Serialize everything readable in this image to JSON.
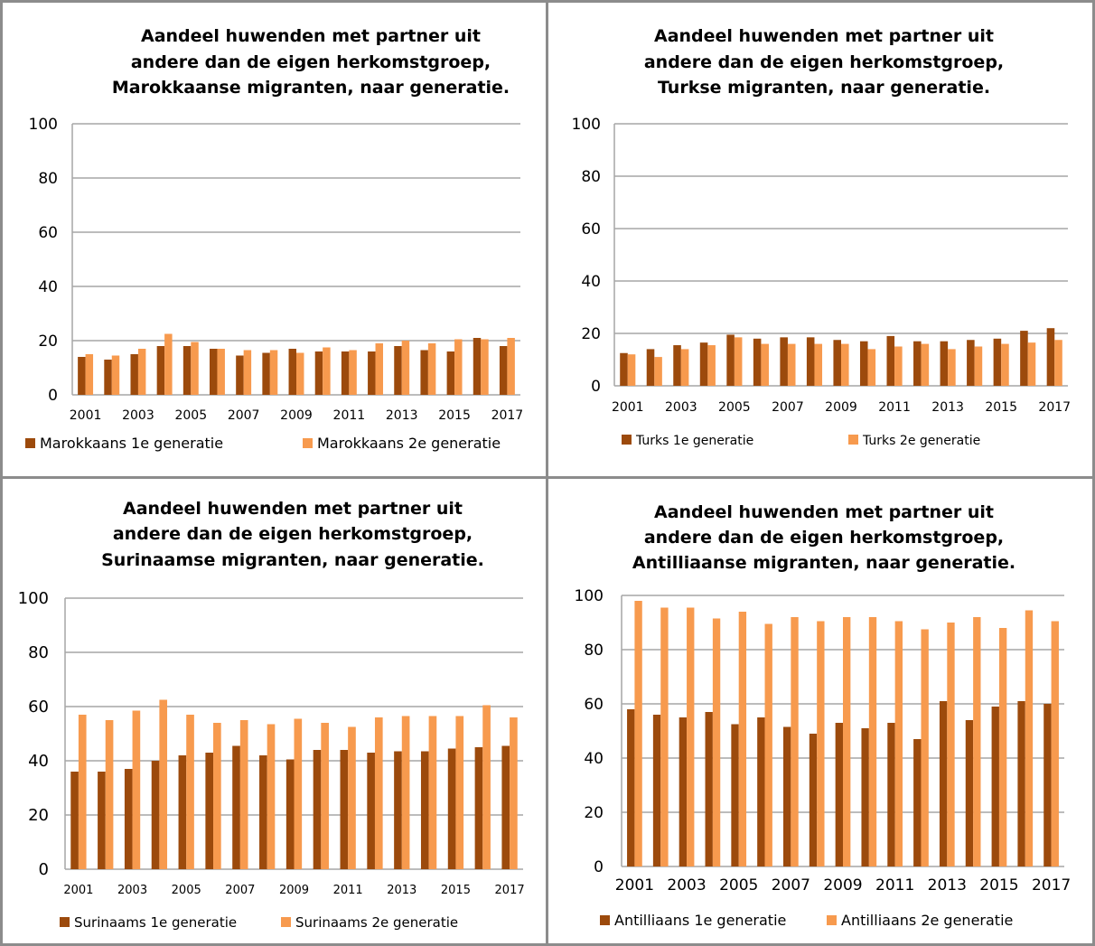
{
  "colors": {
    "first_gen": "#9c4a0c",
    "second_gen": "#f79a4e",
    "grid": "#a6a6a6"
  },
  "chart_data": [
    {
      "type": "bar",
      "title_lines": [
        "Aandeel huwenden met partner uit",
        "andere dan de eigen herkomstgroep,",
        "Marokkaanse migranten, naar generatie."
      ],
      "categories": [
        "2001",
        "2002",
        "2003",
        "2004",
        "2005",
        "2006",
        "2007",
        "2008",
        "2009",
        "2010",
        "2011",
        "2012",
        "2013",
        "2014",
        "2015",
        "2016",
        "2017"
      ],
      "x_tick_labels": [
        "2001",
        "2003",
        "2005",
        "2007",
        "2009",
        "2011",
        "2013",
        "2015",
        "2017"
      ],
      "y_ticks": [
        "0",
        "20",
        "40",
        "60",
        "80",
        "100"
      ],
      "ylim": [
        0,
        100
      ],
      "grid": true,
      "legend_position": "bottom",
      "series": [
        {
          "name": "Marokkaans 1e generatie",
          "values": [
            14,
            13,
            15,
            18,
            18,
            17,
            14.5,
            15.5,
            17,
            16,
            16,
            16,
            18,
            16.5,
            16,
            21,
            18
          ]
        },
        {
          "name": "Marokkaans 2e generatie",
          "values": [
            15,
            14.5,
            17,
            22.5,
            19.5,
            17,
            16.5,
            16.5,
            15.5,
            17.5,
            16.5,
            19,
            20,
            19,
            20.5,
            20.5,
            21
          ]
        }
      ]
    },
    {
      "type": "bar",
      "title_lines": [
        "Aandeel huwenden met partner uit",
        "andere dan de eigen herkomstgroep,",
        "Turkse migranten, naar generatie."
      ],
      "categories": [
        "2001",
        "2002",
        "2003",
        "2004",
        "2005",
        "2006",
        "2007",
        "2008",
        "2009",
        "2010",
        "2011",
        "2012",
        "2013",
        "2014",
        "2015",
        "2016",
        "2017"
      ],
      "x_tick_labels": [
        "2001",
        "2003",
        "2005",
        "2007",
        "2009",
        "2011",
        "2013",
        "2015",
        "2017"
      ],
      "y_ticks": [
        "0",
        "20",
        "40",
        "60",
        "80",
        "100"
      ],
      "ylim": [
        0,
        100
      ],
      "grid": true,
      "legend_position": "bottom",
      "series": [
        {
          "name": "Turks 1e generatie",
          "values": [
            12.5,
            14,
            15.5,
            16.5,
            19.5,
            18,
            18.5,
            18.5,
            17.5,
            17,
            19,
            17,
            17,
            17.5,
            18,
            21,
            22
          ]
        },
        {
          "name": "Turks 2e generatie",
          "values": [
            12,
            11,
            14,
            15.5,
            18.5,
            16,
            16,
            16,
            16,
            14,
            15,
            16,
            14,
            15,
            16,
            16.5,
            17.5
          ]
        }
      ]
    },
    {
      "type": "bar",
      "title_lines": [
        "Aandeel huwenden met partner uit",
        "andere dan de eigen herkomstgroep,",
        "Surinaamse migranten, naar generatie."
      ],
      "categories": [
        "2001",
        "2002",
        "2003",
        "2004",
        "2005",
        "2006",
        "2007",
        "2008",
        "2009",
        "2010",
        "2011",
        "2012",
        "2013",
        "2014",
        "2015",
        "2016",
        "2017"
      ],
      "x_tick_labels": [
        "2001",
        "2003",
        "2005",
        "2007",
        "2009",
        "2011",
        "2013",
        "2015",
        "2017"
      ],
      "y_ticks": [
        "0",
        "20",
        "40",
        "60",
        "80",
        "100"
      ],
      "ylim": [
        0,
        100
      ],
      "grid": true,
      "legend_position": "bottom",
      "series": [
        {
          "name": "Surinaams 1e generatie",
          "values": [
            36,
            36,
            37,
            40,
            42,
            43,
            45.5,
            42,
            40.5,
            44,
            44,
            43,
            43.5,
            43.5,
            44.5,
            45,
            45.5
          ]
        },
        {
          "name": "Surinaams 2e generatie",
          "values": [
            57,
            55,
            58.5,
            62.5,
            57,
            54,
            55,
            53.5,
            55.5,
            54,
            52.5,
            56,
            56.5,
            56.5,
            56.5,
            60.5,
            56
          ]
        }
      ]
    },
    {
      "type": "bar",
      "title_lines": [
        "Aandeel huwenden met partner uit",
        "andere dan de eigen herkomstgroep,",
        "Antilliaanse migranten, naar generatie."
      ],
      "categories": [
        "2001",
        "2002",
        "2003",
        "2004",
        "2005",
        "2006",
        "2007",
        "2008",
        "2009",
        "2010",
        "2011",
        "2012",
        "2013",
        "2014",
        "2015",
        "2016",
        "2017"
      ],
      "x_tick_labels": [
        "2001",
        "2003",
        "2005",
        "2007",
        "2009",
        "2011",
        "2013",
        "2015",
        "2017"
      ],
      "y_ticks": [
        "0",
        "20",
        "40",
        "60",
        "80",
        "100"
      ],
      "ylim": [
        0,
        100
      ],
      "grid": true,
      "legend_position": "bottom",
      "series": [
        {
          "name": "Antilliaans 1e generatie",
          "values": [
            58,
            56,
            55,
            57,
            52.5,
            55,
            51.5,
            49,
            53,
            51,
            53,
            47,
            61,
            54,
            59,
            61,
            60
          ]
        },
        {
          "name": "Antilliaans 2e generatie",
          "values": [
            98,
            95.5,
            95.5,
            91.5,
            94,
            89.5,
            92,
            90.5,
            92,
            92,
            90.5,
            87.5,
            90,
            92,
            88,
            94.5,
            90.5
          ]
        }
      ]
    }
  ]
}
